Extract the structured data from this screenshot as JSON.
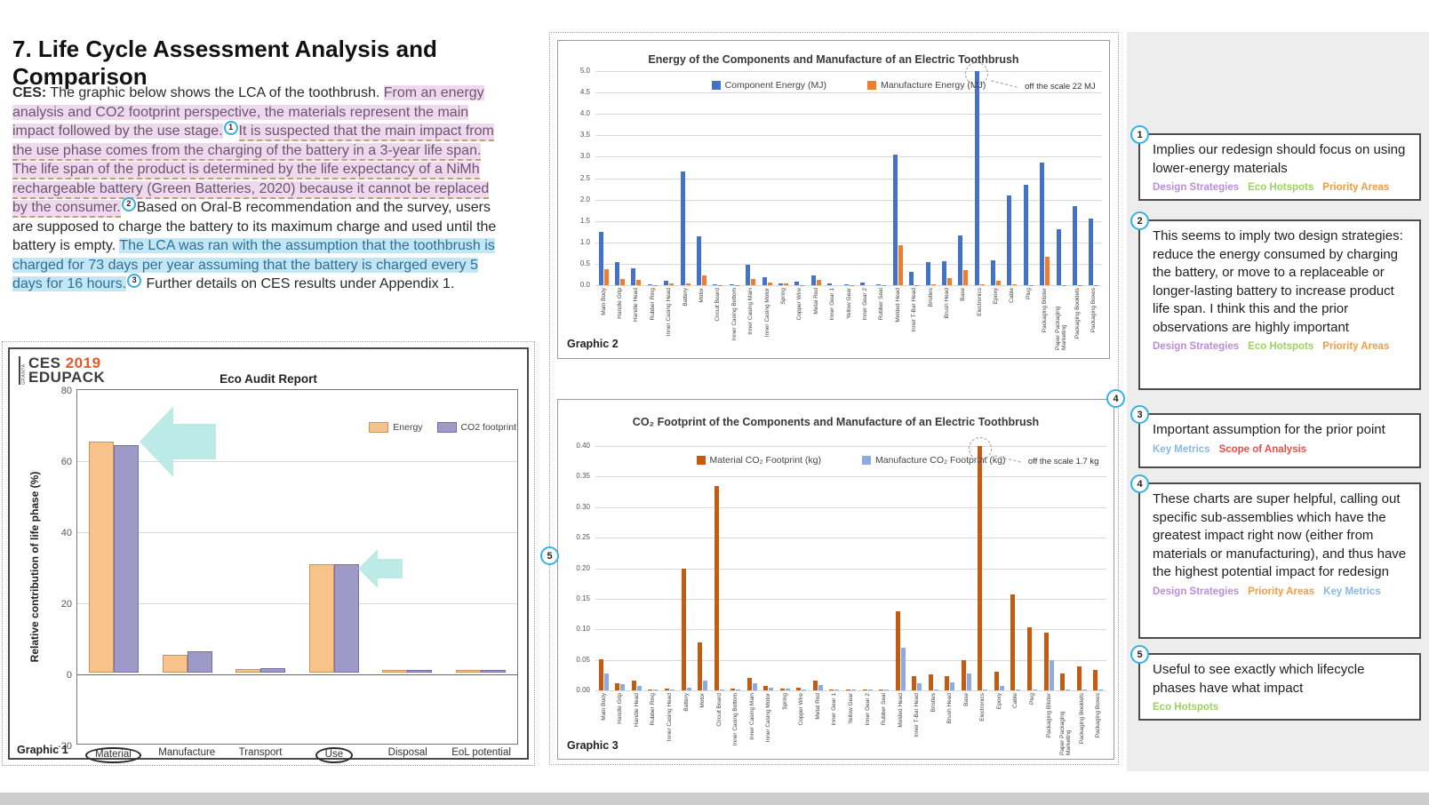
{
  "page": {
    "title": "7. Life Cycle Assessment Analysis and Comparison"
  },
  "intro": {
    "segments": [
      {
        "text": "CES:",
        "style": "bold"
      },
      {
        "text": " The graphic below shows the LCA of the toothbrush. ",
        "style": "normal"
      },
      {
        "text": "From an energy analysis and CO2 footprint perspective, the materials represent the main impact followed by the use stage.",
        "style": "pink"
      },
      {
        "marker": "1"
      },
      {
        "text": "It is suspected that the main impact from the use phase comes from the charging of the battery in a 3-year life span. The life span of the product is determined by the life expectancy of a NiMh rechargeable battery (Green Batteries, 2020) because it cannot be replaced by the consumer.",
        "style": "pink-dashed"
      },
      {
        "marker": "2"
      },
      {
        "text": "Based on Oral-B recommendation and the survey, users are supposed to charge the battery to its maximum charge and used until the battery is empty. ",
        "style": "normal"
      },
      {
        "text": "The LCA was ran with the assumption that the toothbrush is charged for 73 days per year assuming that the battery is charged every 5 days for 16 hours.",
        "style": "blue"
      },
      {
        "marker": "3"
      },
      {
        "text": " Further details on CES results under Appendix 1.",
        "style": "normal"
      }
    ]
  },
  "logo": {
    "brand": "GRANTA",
    "product": "CES",
    "year": "2019",
    "line2": "EDUPACK"
  },
  "graphic_labels": {
    "g1": "Graphic 1",
    "g2": "Graphic 2",
    "g3": "Graphic 3"
  },
  "chart_data": [
    {
      "type": "bar",
      "title": "Eco Audit Report",
      "categories": [
        "Material",
        "Manufacture",
        "Transport",
        "Use",
        "Disposal",
        "EoL potential"
      ],
      "series": [
        {
          "name": "Energy",
          "color": "#f7c38b",
          "border": "#c8935a",
          "values": [
            64.5,
            4.5,
            0.6,
            30,
            0.2,
            0.2
          ]
        },
        {
          "name": "CO2 footprint",
          "color": "#9e99c7",
          "border": "#736fa6",
          "values": [
            63.5,
            5.5,
            0.8,
            30,
            0.3,
            0.3
          ]
        }
      ],
      "ylabel": "Relative contribution of life phase (%)",
      "ylim": [
        -20,
        80
      ],
      "ytick_step": 20,
      "grid": true,
      "legend_position": "top-right",
      "circled_categories": [
        "Material",
        "Use"
      ],
      "annotations": [
        "left-arrow at Material bars",
        "left-arrow at Use bars"
      ]
    },
    {
      "type": "bar",
      "title": "Energy of the Components and Manufacture of an Electric Toothbrush",
      "categories": [
        "Main Body",
        "Handle Grip",
        "Handle Head",
        "Rubber Ring",
        "Inner Casing Head",
        "Battery",
        "Motor",
        "Circuit Board",
        "Inner Casing Bottom",
        "Inner Casing Main",
        "Inner Casing Motor",
        "Spring",
        "Copper Wire",
        "Metal Rod",
        "Inner Gear 1",
        "Yellow Gear",
        "Inner Gear 2",
        "Rubber Seal",
        "Molded Head",
        "Inner T-Bar Head",
        "Bristles",
        "Brush Head",
        "Base",
        "Electronics",
        "Epoxy",
        "Cable",
        "Plug",
        "Packaging Blister",
        "Paper Packaging Marketing",
        "Packaging Booklets",
        "Packaging Boxes"
      ],
      "series": [
        {
          "name": "Component Energy (MJ)",
          "color": "#4472c4",
          "values": [
            1.25,
            0.55,
            0.4,
            0.02,
            0.1,
            2.65,
            1.15,
            0.02,
            0.02,
            0.48,
            0.18,
            0.05,
            0.08,
            0.23,
            0.04,
            0.02,
            0.06,
            0.02,
            3.05,
            0.31,
            0.54,
            0.57,
            1.16,
            5.0,
            0.58,
            2.1,
            2.35,
            2.87,
            1.3,
            1.85,
            1.55
          ]
        },
        {
          "name": "Manufacture Energy (MJ)",
          "color": "#ed7d31",
          "values": [
            0.38,
            0.15,
            0.12,
            0.01,
            0.04,
            0.05,
            0.22,
            0.01,
            0.01,
            0.15,
            0.06,
            0.05,
            0.01,
            0.12,
            0,
            0.01,
            0,
            0.01,
            0.93,
            0.01,
            0.03,
            0.17,
            0.36,
            0.02,
            0.1,
            0.02,
            0.01,
            0.67,
            0.01,
            0.01,
            0.01
          ]
        }
      ],
      "ylim": [
        0,
        5
      ],
      "ytick_step": 0.5,
      "grid": true,
      "legend_position": "in-plot-center",
      "annotation": {
        "text": "off the scale 22 MJ",
        "category": "Electronics",
        "series": "Component Energy (MJ)",
        "actual_value": "22 MJ"
      }
    },
    {
      "type": "bar",
      "title": "CO₂ Footprint of the Components and Manufacture of an Electric Toothbrush",
      "categories": [
        "Main Body",
        "Handle Grip",
        "Handle Head",
        "Rubber Ring",
        "Inner Casing Head",
        "Battery",
        "Motor",
        "Circuit Board",
        "Inner Casing Bottom",
        "Inner Casing Main",
        "Inner Casing Motor",
        "Spring",
        "Copper Wire",
        "Metal Rod",
        "Inner Gear 1",
        "Yellow Gear",
        "Inner Gear 2",
        "Rubber Seal",
        "Molded Head",
        "Inner T-Bar Head",
        "Bristles",
        "Brush Head",
        "Base",
        "Electronics",
        "Epoxy",
        "Cable",
        "Plug",
        "Packaging Blister",
        "Paper Packaging Marketing",
        "Packaging Booklets",
        "Packaging Boxes"
      ],
      "series": [
        {
          "name": "Material CO₂ Footprint (kg)",
          "color": "#c55a11",
          "values": [
            0.051,
            0.012,
            0.016,
            0.001,
            0.003,
            0.199,
            0.079,
            0.335,
            0.003,
            0.02,
            0.008,
            0.003,
            0.004,
            0.016,
            0.002,
            0.001,
            0.001,
            0.001,
            0.129,
            0.023,
            0.026,
            0.023,
            0.049,
            0.4,
            0.03,
            0.157,
            0.104,
            0.094,
            0.028,
            0.04,
            0.034
          ]
        },
        {
          "name": "Manufacture CO₂ Footprint (kg)",
          "color": "#8faadc",
          "values": [
            0.028,
            0.01,
            0.008,
            0.001,
            0.001,
            0.004,
            0.016,
            0.002,
            0.001,
            0.011,
            0.004,
            0.003,
            0.001,
            0.009,
            0.001,
            0.001,
            0.001,
            0.001,
            0.07,
            0.011,
            0.002,
            0.013,
            0.027,
            0.002,
            0.007,
            0.002,
            0.001,
            0.05,
            0.001,
            0.001,
            0.001
          ]
        }
      ],
      "ylim": [
        0,
        0.4
      ],
      "ytick_step": 0.05,
      "grid": true,
      "legend_position": "in-plot-center",
      "annotation": {
        "text": "off the scale 1.7 kg",
        "category": "Electronics",
        "series": "Material CO₂ Footprint (kg)",
        "actual_value": "1.7 kg"
      }
    }
  ],
  "sidebar": {
    "notes": [
      {
        "num": "1",
        "text": "Implies our redesign should focus on using lower-energy materials",
        "tags": [
          "Design Strategies",
          "Eco Hotspots",
          "Priority Areas"
        ]
      },
      {
        "num": "2",
        "text": "This seems to imply two design strategies: reduce the energy consumed by charging the battery, or move to a replaceable or longer-lasting battery to increase product life span. I think this and the prior observations are highly important",
        "tags": [
          "Design Strategies",
          "Eco Hotspots",
          "Priority Areas"
        ]
      },
      {
        "num": "3",
        "text": "Important assumption for the prior point",
        "tags": [
          "Key Metrics",
          "Scope of Analysis"
        ]
      },
      {
        "num": "4",
        "text": "These charts are super helpful, calling out specific sub-assemblies which have the greatest impact right now (either from materials or manufacturing), and thus have the highest potential impact for redesign",
        "tags": [
          "Design Strategies",
          "Priority Areas",
          "Key Metrics"
        ]
      },
      {
        "num": "5",
        "text": "Useful to see exactly which lifecycle phases have what impact",
        "tags": [
          "Eco Hotspots"
        ]
      }
    ],
    "tag_colors": {
      "Design Strategies": "#bd8ce0",
      "Eco Hotspots": "#9ad45f",
      "Priority Areas": "#f09d43",
      "Key Metrics": "#85b9e8",
      "Scope of Analysis": "#ed4c44"
    }
  },
  "anchor_markers": [
    {
      "num": "1",
      "location": "after 'use stage.'"
    },
    {
      "num": "2",
      "location": "after 'the consumer.'"
    },
    {
      "num": "3",
      "location": "after 'for 16 hours.'"
    },
    {
      "num": "4",
      "location": "top-right corner of Graphic 3 panel"
    },
    {
      "num": "5",
      "location": "left edge of Graphic 3 panel"
    }
  ],
  "colors": {
    "badge_ring": "#35b1e3",
    "highlight_pink": "#eed9ee",
    "highlight_blue": "#c3e6f5",
    "sidebar_bg": "#ededed",
    "arrow": "#b5e8e4",
    "logo_year": "#e05a2b"
  }
}
